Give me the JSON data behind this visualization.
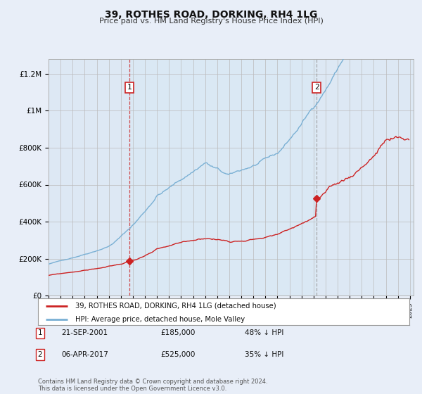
{
  "title": "39, ROTHES ROAD, DORKING, RH4 1LG",
  "subtitle": "Price paid vs. HM Land Registry's House Price Index (HPI)",
  "legend_line1": "39, ROTHES ROAD, DORKING, RH4 1LG (detached house)",
  "legend_line2": "HPI: Average price, detached house, Mole Valley",
  "transaction1_date": "21-SEP-2001",
  "transaction1_price": "£185,000",
  "transaction1_hpi": "48% ↓ HPI",
  "transaction2_date": "06-APR-2017",
  "transaction2_price": "£525,000",
  "transaction2_hpi": "35% ↓ HPI",
  "footer": "Contains HM Land Registry data © Crown copyright and database right 2024.\nThis data is licensed under the Open Government Licence v3.0.",
  "hpi_color": "#7ab0d4",
  "price_color": "#cc2222",
  "vline1_color": "#cc2222",
  "vline2_color": "#999999",
  "shade_color": "#d8e8f5",
  "background_color": "#e8eef8",
  "plot_bg_color": "#dde8f4",
  "ytick_labels": [
    "£0",
    "£200K",
    "£400K",
    "£600K",
    "£800K",
    "£1M",
    "£1.2M"
  ],
  "yticks": [
    0,
    200000,
    400000,
    600000,
    800000,
    1000000,
    1200000
  ],
  "ylim": [
    0,
    1280000
  ]
}
